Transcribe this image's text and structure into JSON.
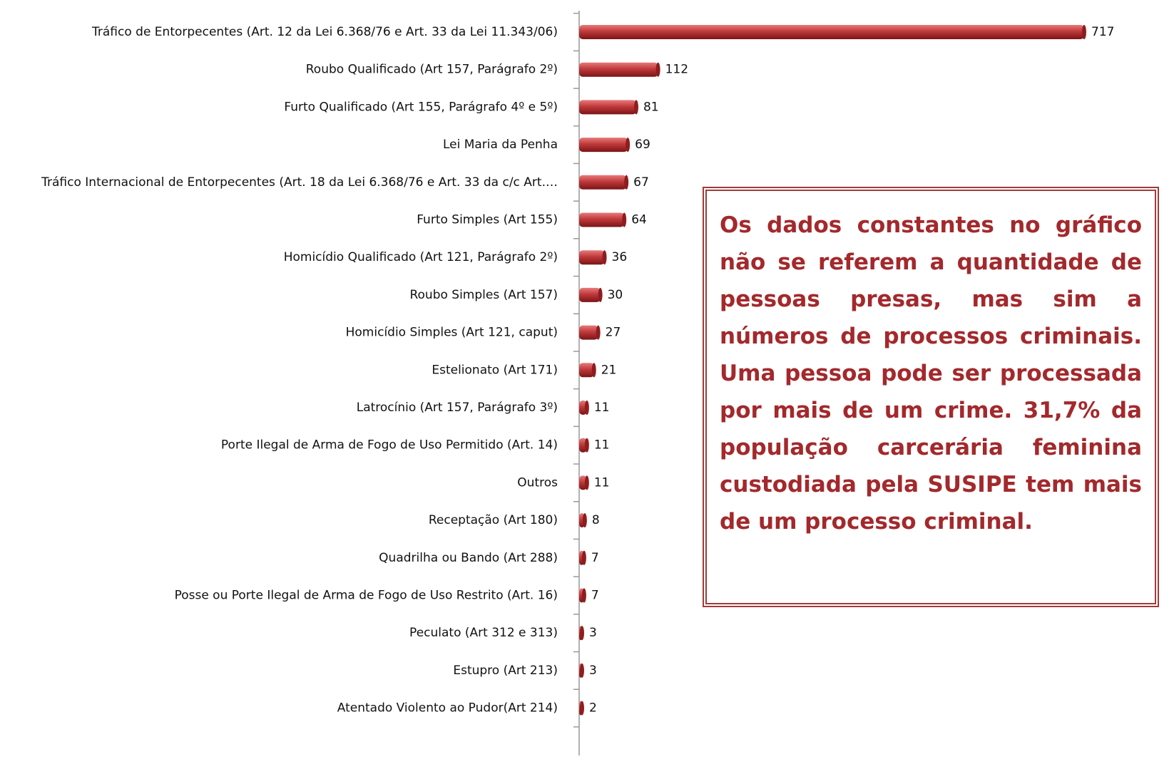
{
  "chart_data": {
    "type": "bar",
    "orientation": "horizontal",
    "color": "#c0393b",
    "categories": [
      "Tráfico de Entorpecentes (Art. 12 da Lei 6.368/76 e Art. 33 da Lei 11.343/06)",
      "Roubo Qualificado (Art 157, Parágrafo 2º)",
      "Furto Qualificado (Art 155, Parágrafo 4º e 5º)",
      "Lei Maria da Penha",
      "Tráfico Internacional de Entorpecentes (Art. 18 da Lei 6.368/76 e Art. 33 da c/c Art.…",
      "Furto Simples (Art 155)",
      "Homicídio Qualificado (Art 121, Parágrafo 2º)",
      "Roubo Simples (Art 157)",
      "Homicídio Simples (Art 121, caput)",
      "Estelionato (Art 171)",
      "Latrocínio (Art 157, Parágrafo 3º)",
      "Porte Ilegal de Arma de Fogo de Uso Permitido (Art. 14)",
      "Outros",
      "Receptação (Art 180)",
      "Quadrilha ou Bando (Art 288)",
      "Posse ou Porte Ilegal de Arma de Fogo de Uso Restrito (Art. 16)",
      "Peculato (Art 312 e 313)",
      "Estupro (Art 213)",
      "Atentado Violento ao Pudor(Art 214)"
    ],
    "values": [
      717,
      112,
      81,
      69,
      67,
      64,
      36,
      30,
      27,
      21,
      11,
      11,
      11,
      8,
      7,
      7,
      3,
      3,
      2
    ],
    "annotation": "Os dados constantes no gráfico não se referem a quantidade de pessoas presas, mas sim a números de processos criminais. Uma pessoa pode ser processada por mais de um crime. 31,7% da população carcerária feminina custodiada pela SUSIPE tem mais de um processo criminal."
  }
}
